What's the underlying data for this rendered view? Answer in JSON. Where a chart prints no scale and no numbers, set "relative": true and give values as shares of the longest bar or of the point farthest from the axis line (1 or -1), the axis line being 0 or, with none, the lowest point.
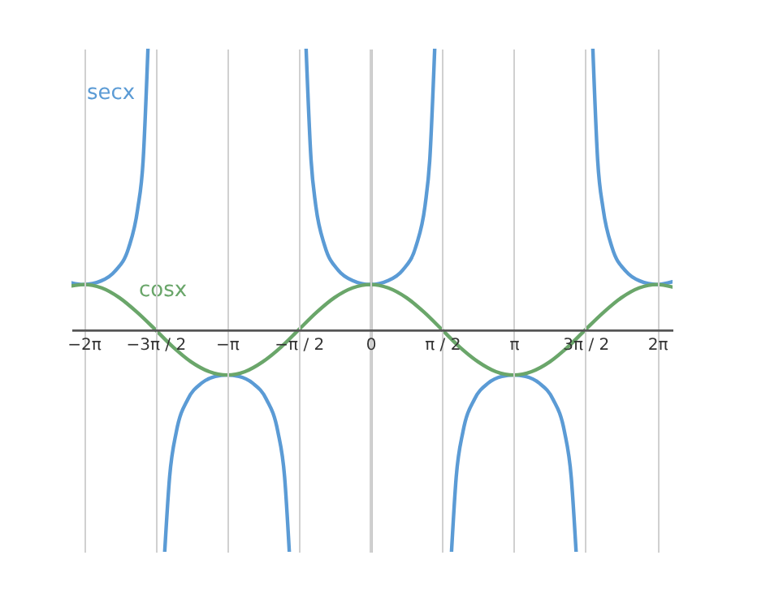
{
  "chart_data": {
    "type": "line",
    "relative": true,
    "xlim": [
      -6.55,
      6.62
    ],
    "xticks": [
      {
        "value": -6.283,
        "label": "−2π"
      },
      {
        "value": -4.712,
        "label": "−3π / 2"
      },
      {
        "value": -3.1416,
        "label": "−π"
      },
      {
        "value": -1.5708,
        "label": "−π / 2"
      },
      {
        "value": 0,
        "label": "0"
      },
      {
        "value": 1.5708,
        "label": "π / 2"
      },
      {
        "value": 3.1416,
        "label": "π"
      },
      {
        "value": 4.712,
        "label": "3π / 2"
      },
      {
        "value": 6.283,
        "label": "2π"
      }
    ],
    "tick_labels": "x",
    "grid": "x",
    "legend": false,
    "marker": "none",
    "line_style": "solid",
    "series": [
      {
        "name": "secx",
        "color": "#5b9bd5",
        "x": [
          -6.55,
          -6.283,
          -5.9,
          -5.6,
          -5.3,
          -5.1,
          -4.98,
          -4.874,
          -4.7,
          -4.507,
          -4.4,
          -4.25,
          -4.0,
          -3.7,
          -3.4,
          -3.1416,
          -2.88,
          -2.58,
          -2.28,
          -2.03,
          -1.88,
          -1.777,
          -1.6,
          -1.409,
          -1.3,
          -1.2,
          -1.0,
          -0.7,
          -0.4,
          0,
          0.4,
          0.7,
          1.0,
          1.2,
          1.3,
          1.409,
          1.6,
          1.777,
          1.88,
          2.03,
          2.28,
          2.58,
          2.88,
          3.1416,
          3.4,
          3.7,
          4.0,
          4.25,
          4.4,
          4.507,
          4.7,
          4.874,
          4.98,
          5.1,
          5.3,
          5.6,
          5.9,
          6.283,
          6.62
        ],
        "values": [
          0.167,
          0.161,
          0.174,
          0.208,
          0.29,
          0.429,
          0.602,
          1,
          null,
          -0.79,
          -0.524,
          -0.361,
          -0.247,
          -0.19,
          -0.166,
          -0.161,
          -0.166,
          -0.19,
          -0.247,
          -0.361,
          -0.524,
          -0.79,
          null,
          1,
          0.603,
          0.445,
          0.298,
          0.211,
          0.176,
          0.161,
          0.176,
          0.211,
          0.298,
          0.445,
          0.603,
          1,
          null,
          -0.79,
          -0.524,
          -0.361,
          -0.247,
          -0.19,
          -0.166,
          -0.161,
          -0.166,
          -0.19,
          -0.247,
          -0.361,
          -0.524,
          -0.79,
          null,
          1,
          0.602,
          0.429,
          0.29,
          0.208,
          0.174,
          0.161,
          0.171
        ]
      },
      {
        "name": "cosx",
        "color": "#6aa66a",
        "x": [
          -6.55,
          -6.283,
          -5.89,
          -5.5,
          -5.11,
          -4.71,
          -4.32,
          -3.93,
          -3.53,
          -3.1416,
          -2.75,
          -2.36,
          -1.96,
          -1.5708,
          -1.18,
          -0.79,
          -0.39,
          0,
          0.39,
          0.79,
          1.18,
          1.5708,
          1.96,
          2.36,
          2.75,
          3.1416,
          3.53,
          3.93,
          4.32,
          4.71,
          5.11,
          5.5,
          5.89,
          6.283,
          6.62
        ],
        "values": [
          0.156,
          0.161,
          0.149,
          0.114,
          0.062,
          0,
          -0.062,
          -0.114,
          -0.149,
          -0.161,
          -0.149,
          -0.114,
          -0.062,
          0,
          0.062,
          0.114,
          0.149,
          0.161,
          0.149,
          0.114,
          0.062,
          0,
          -0.062,
          -0.114,
          -0.149,
          -0.161,
          -0.149,
          -0.114,
          -0.062,
          0,
          0.062,
          0.114,
          0.149,
          0.161,
          0.152
        ]
      }
    ]
  }
}
